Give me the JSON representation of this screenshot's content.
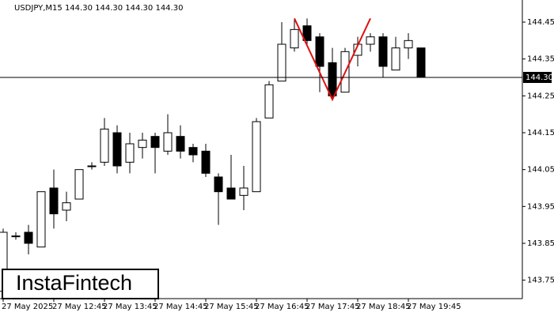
{
  "chart_data": {
    "type": "candlestick",
    "title": "USDJPY,M15  144.30 144.30 144.30 144.30",
    "brand": "InstaFintech",
    "categories": [
      "27 May 2025",
      null,
      null,
      null,
      "27 May 12:45",
      null,
      null,
      null,
      "27 May 13:45",
      null,
      null,
      null,
      "27 May 14:45",
      null,
      null,
      null,
      "27 May 15:45",
      null,
      null,
      null,
      "27 May 16:45",
      null,
      null,
      null,
      "27 May 17:45",
      null,
      null,
      null,
      "27 May 18:45",
      null,
      null,
      null,
      "27 May 19:45",
      null
    ],
    "open": [
      143.72,
      143.87,
      143.88,
      143.84,
      144.0,
      143.94,
      143.97,
      144.06,
      144.07,
      144.15,
      144.07,
      144.11,
      144.14,
      144.1,
      144.14,
      144.11,
      144.1,
      144.03,
      144.0,
      143.98,
      143.99,
      144.19,
      144.29,
      144.38,
      144.44,
      144.41,
      144.34,
      144.26,
      144.36,
      144.39,
      144.41,
      144.32,
      144.38,
      144.38
    ],
    "high": [
      143.89,
      143.88,
      143.9,
      143.99,
      144.05,
      143.99,
      144.05,
      144.07,
      144.19,
      144.17,
      144.15,
      144.15,
      144.15,
      144.2,
      144.17,
      144.12,
      144.12,
      144.04,
      144.09,
      144.06,
      144.19,
      144.29,
      144.45,
      144.46,
      144.46,
      144.42,
      144.38,
      144.38,
      144.41,
      144.42,
      144.42,
      144.41,
      144.42,
      144.38
    ],
    "low": [
      143.71,
      143.86,
      143.82,
      143.84,
      143.89,
      143.91,
      143.97,
      144.05,
      144.06,
      144.04,
      144.04,
      144.08,
      144.04,
      144.09,
      144.08,
      144.07,
      144.03,
      143.9,
      143.97,
      143.94,
      143.99,
      144.19,
      144.29,
      144.37,
      144.39,
      144.26,
      144.24,
      144.26,
      144.33,
      144.37,
      144.3,
      144.32,
      144.35,
      144.3
    ],
    "close": [
      143.88,
      143.87,
      143.85,
      143.99,
      143.93,
      143.96,
      144.05,
      144.06,
      144.16,
      144.06,
      144.12,
      144.13,
      144.11,
      144.15,
      144.1,
      144.09,
      144.04,
      143.99,
      143.97,
      144.0,
      144.18,
      144.28,
      144.39,
      144.43,
      144.4,
      144.33,
      144.25,
      144.37,
      144.39,
      144.41,
      144.33,
      144.38,
      144.4,
      144.3
    ],
    "up_color": "#ffffff",
    "down_color": "#000000",
    "ylim": [
      143.7,
      144.51
    ],
    "yticks": [
      144.45,
      144.35,
      144.25,
      144.15,
      144.05,
      143.95,
      143.85,
      143.75
    ],
    "current_price": {
      "value": 144.3,
      "label": "144.30"
    },
    "pattern": {
      "color": "#e01010",
      "points": [
        {
          "index": 23,
          "value": 144.46
        },
        {
          "index": 26,
          "value": 144.24
        },
        {
          "index": 29,
          "value": 144.46
        }
      ]
    }
  }
}
